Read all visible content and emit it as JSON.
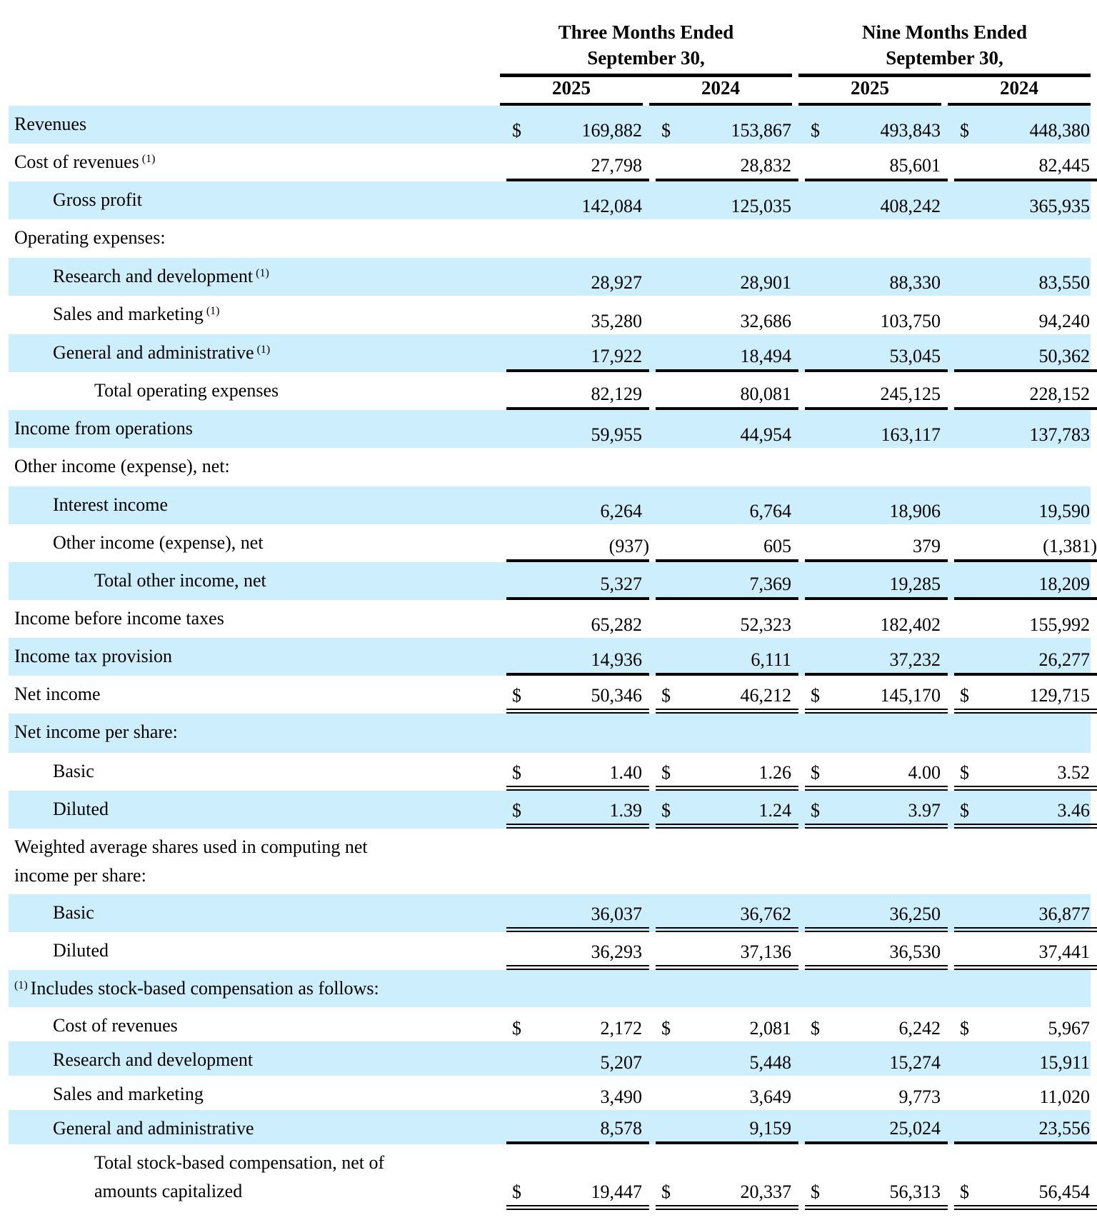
{
  "header": {
    "groups": [
      {
        "line1": "Three Months Ended",
        "line2": "September 30,"
      },
      {
        "line1": "Nine Months Ended",
        "line2": "September 30,"
      }
    ],
    "years": [
      "2025",
      "2024",
      "2025",
      "2024"
    ]
  },
  "colors": {
    "band": "#cdeefd"
  },
  "rows": [
    {
      "label": "Revenues",
      "indent": 0,
      "shaded": true,
      "dollar": true,
      "values": [
        "169,882",
        "153,867",
        "493,843",
        "448,380"
      ],
      "h": 53
    },
    {
      "label": "Cost of revenues",
      "sup": "(1)",
      "indent": 0,
      "shaded": false,
      "values": [
        "27,798",
        "28,832",
        "85,601",
        "82,445"
      ],
      "rule": "single",
      "h": 53
    },
    {
      "label": "Gross profit",
      "indent": 1,
      "shaded": true,
      "values": [
        "142,084",
        "125,035",
        "408,242",
        "365,935"
      ],
      "h": 53
    },
    {
      "label": "Operating expenses:",
      "indent": 0,
      "shaded": false,
      "values": [],
      "h": 54
    },
    {
      "label": "Research and development",
      "sup": "(1)",
      "indent": 1,
      "shaded": true,
      "values": [
        "28,927",
        "28,901",
        "88,330",
        "83,550"
      ],
      "h": 53
    },
    {
      "label": "Sales and marketing",
      "sup": "(1)",
      "indent": 1,
      "shaded": false,
      "values": [
        "35,280",
        "32,686",
        "103,750",
        "94,240"
      ],
      "h": 54
    },
    {
      "label": "General and administrative",
      "sup": "(1)",
      "indent": 1,
      "shaded": true,
      "values": [
        "17,922",
        "18,494",
        "53,045",
        "50,362"
      ],
      "rule": "single",
      "h": 53
    },
    {
      "label": "Total operating expenses",
      "indent": 2,
      "shaded": false,
      "values": [
        "82,129",
        "80,081",
        "245,125",
        "228,152"
      ],
      "rule": "single",
      "h": 53
    },
    {
      "label": "Income from operations",
      "indent": 0,
      "shaded": true,
      "values": [
        "59,955",
        "44,954",
        "163,117",
        "137,783"
      ],
      "h": 53
    },
    {
      "label": "Other income (expense), net:",
      "indent": 0,
      "shaded": false,
      "values": [],
      "h": 54
    },
    {
      "label": "Interest income",
      "indent": 1,
      "shaded": true,
      "values": [
        "6,264",
        "6,764",
        "18,906",
        "19,590"
      ],
      "h": 53
    },
    {
      "label": "Other income (expense), net",
      "indent": 1,
      "shaded": false,
      "values": [
        "(937)",
        "605",
        "379",
        "(1,381)"
      ],
      "rule": "single",
      "h": 53
    },
    {
      "label": "Total other income, net",
      "indent": 2,
      "shaded": true,
      "values": [
        "5,327",
        "7,369",
        "19,285",
        "18,209"
      ],
      "rule": "single",
      "h": 53
    },
    {
      "label": "Income before income taxes",
      "indent": 0,
      "shaded": false,
      "values": [
        "65,282",
        "52,323",
        "182,402",
        "155,992"
      ],
      "h": 53
    },
    {
      "label": "Income tax provision",
      "indent": 0,
      "shaded": true,
      "values": [
        "14,936",
        "6,111",
        "37,232",
        "26,277"
      ],
      "rule": "single",
      "h": 53
    },
    {
      "label": "Net income",
      "indent": 0,
      "shaded": false,
      "dollar": true,
      "values": [
        "50,346",
        "46,212",
        "145,170",
        "129,715"
      ],
      "rule": "double",
      "h": 53
    },
    {
      "label": "Net income per share:",
      "indent": 0,
      "shaded": true,
      "values": [],
      "h": 55
    },
    {
      "label": "Basic",
      "indent": 1,
      "shaded": false,
      "dollar": true,
      "values": [
        "1.40",
        "1.26",
        "4.00",
        "3.52"
      ],
      "rule": "double",
      "h": 53
    },
    {
      "label": "Diluted",
      "indent": 1,
      "shaded": true,
      "dollar": true,
      "values": [
        "1.39",
        "1.24",
        "3.97",
        "3.46"
      ],
      "rule": "double",
      "h": 53
    },
    {
      "label": "Weighted average shares used in computing net income per share:",
      "indent": 0,
      "shaded": false,
      "values": [],
      "h": 92
    },
    {
      "label": "Basic",
      "indent": 1,
      "shaded": true,
      "values": [
        "36,037",
        "36,762",
        "36,250",
        "36,877"
      ],
      "rule": "double",
      "h": 53
    },
    {
      "label": "Diluted",
      "indent": 1,
      "shaded": false,
      "values": [
        "36,293",
        "37,136",
        "36,530",
        "37,441"
      ],
      "rule": "double",
      "h": 53
    },
    {
      "label": "Includes stock-based compensation as follows:",
      "sup": "(1)",
      "foot": true,
      "indent": 0,
      "shaded": true,
      "values": [],
      "h": 52
    },
    {
      "label": "Cost of revenues",
      "indent": 1,
      "shaded": false,
      "dollar": true,
      "values": [
        "2,172",
        "2,081",
        "6,242",
        "5,967"
      ],
      "h": 48
    },
    {
      "label": "Research and development",
      "indent": 1,
      "shaded": true,
      "values": [
        "5,207",
        "5,448",
        "15,274",
        "15,911"
      ],
      "h": 48
    },
    {
      "label": "Sales and marketing",
      "indent": 1,
      "shaded": false,
      "values": [
        "3,490",
        "3,649",
        "9,773",
        "11,020"
      ],
      "h": 48
    },
    {
      "label": "General and administrative",
      "indent": 1,
      "shaded": true,
      "values": [
        "8,578",
        "9,159",
        "25,024",
        "23,556"
      ],
      "rule": "single",
      "h": 48
    },
    {
      "label": "Total stock-based compensation, net of amounts capitalized",
      "indent": 2,
      "shaded": false,
      "dollar": true,
      "values": [
        "19,447",
        "20,337",
        "56,313",
        "56,454"
      ],
      "rule": "double",
      "h": 92
    }
  ]
}
